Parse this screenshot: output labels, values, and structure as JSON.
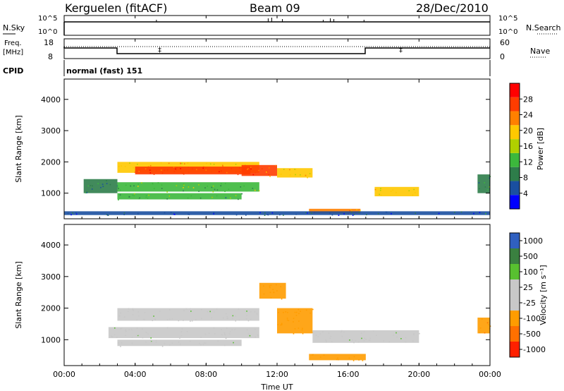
{
  "header": {
    "station": "Kerguelen (fitACF)",
    "beam": "Beam 09",
    "date": "28/Dec/2010"
  },
  "top_panels": {
    "nsky_label": "N.Sky",
    "nsearch_label": "N.Search",
    "left_ticks_count": [
      "10^5",
      "10^0"
    ],
    "right_ticks_count": [
      "10^5",
      "10^0"
    ],
    "freq_label": "Freq.",
    "freq_unit": "[MHz]",
    "freq_ticks": [
      "18",
      "8"
    ],
    "nave_label": "Nave",
    "nave_ticks": [
      "60",
      "0"
    ],
    "cpid_label": "CPID",
    "cpid_value": "normal (fast) 151"
  },
  "colors": {
    "power_scale": [
      "#0000ff",
      "#1a4fa0",
      "#2e7d4a",
      "#3cb83c",
      "#b0d000",
      "#ffc800",
      "#ff8000",
      "#ff3c00",
      "#ff0000"
    ],
    "velocity_scale": [
      "#3060c0",
      "#3a8040",
      "#58c030",
      "#c8c8c8",
      "#c8c8c8",
      "#ff9c00",
      "#ff7000",
      "#ff2000"
    ]
  },
  "chart_data": [
    {
      "type": "heatmap",
      "name": "power",
      "ylabel": "Slant Range [km]",
      "y_ticks": [
        "4000",
        "3000",
        "2000",
        "1000"
      ],
      "ylim": [
        180,
        4650
      ],
      "colorbar_label": "Power [dB]",
      "colorbar_ticks": [
        "28",
        "24",
        "20",
        "16",
        "12",
        "8",
        "4"
      ],
      "colorbar_range": [
        0,
        32
      ],
      "bands": [
        {
          "x": [
            1.1,
            3.0
          ],
          "y": [
            1000,
            1450
          ],
          "power": 9
        },
        {
          "x": [
            3.0,
            11.0
          ],
          "y": [
            1650,
            2000
          ],
          "power": 20
        },
        {
          "x": [
            4.0,
            10.5
          ],
          "y": [
            1600,
            1850
          ],
          "power": 27
        },
        {
          "x": [
            3.0,
            11.0
          ],
          "y": [
            1050,
            1350
          ],
          "power": 14
        },
        {
          "x": [
            3.0,
            10.0
          ],
          "y": [
            800,
            1000
          ],
          "power": 12
        },
        {
          "x": [
            10.0,
            12.0
          ],
          "y": [
            1550,
            1900
          ],
          "power": 25
        },
        {
          "x": [
            12.0,
            14.0
          ],
          "y": [
            1500,
            1800
          ],
          "power": 20
        },
        {
          "x": [
            13.8,
            16.7
          ],
          "y": [
            350,
            500
          ],
          "power": 24
        },
        {
          "x": [
            17.5,
            20.0
          ],
          "y": [
            900,
            1200
          ],
          "power": 18
        },
        {
          "x": [
            23.3,
            24.0
          ],
          "y": [
            1000,
            1600
          ],
          "power": 10
        },
        {
          "x": [
            0.0,
            24.0
          ],
          "y": [
            300,
            420
          ],
          "power": 6
        }
      ]
    },
    {
      "type": "heatmap",
      "name": "velocity",
      "ylabel": "Slant Range [km]",
      "y_ticks": [
        "4000",
        "3000",
        "2000",
        "1000"
      ],
      "ylim": [
        180,
        4650
      ],
      "xlabel": "Time UT",
      "x_ticks": [
        "00:00",
        "04:00",
        "08:00",
        "12:00",
        "16:00",
        "20:00",
        "00:00"
      ],
      "xlim": [
        0,
        24
      ],
      "colorbar_label": "Velocity [m s⁻¹]",
      "colorbar_ticks": [
        "1000",
        "500",
        "100",
        "25",
        "-25",
        "-100",
        "-500",
        "-1000"
      ],
      "bands": [
        {
          "x": [
            3.0,
            11.0
          ],
          "y": [
            1600,
            2000
          ],
          "velocity": 0
        },
        {
          "x": [
            2.5,
            11.0
          ],
          "y": [
            1050,
            1400
          ],
          "velocity": 0
        },
        {
          "x": [
            3.0,
            10.0
          ],
          "y": [
            800,
            1000
          ],
          "velocity": 0
        },
        {
          "x": [
            11.0,
            12.5
          ],
          "y": [
            2300,
            2800
          ],
          "velocity": -300
        },
        {
          "x": [
            12.0,
            14.0
          ],
          "y": [
            1200,
            2000
          ],
          "velocity": -200
        },
        {
          "x": [
            13.8,
            17.0
          ],
          "y": [
            350,
            550
          ],
          "velocity": -400
        },
        {
          "x": [
            14.0,
            20.0
          ],
          "y": [
            900,
            1300
          ],
          "velocity": 0
        },
        {
          "x": [
            23.3,
            24.0
          ],
          "y": [
            1200,
            1700
          ],
          "velocity": -500
        }
      ]
    }
  ]
}
